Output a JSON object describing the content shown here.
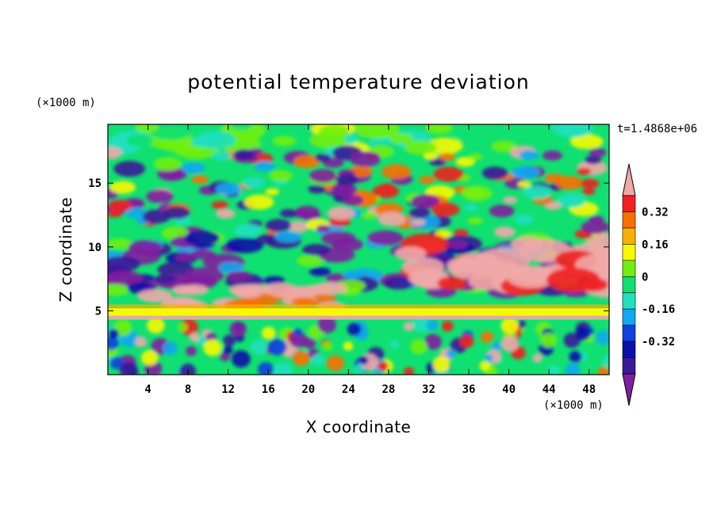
{
  "chart_data": {
    "type": "heatmap",
    "title": "potential temperature deviation",
    "time_label": "t=1.4868e+06",
    "xlabel": "X coordinate",
    "ylabel": "Z coordinate",
    "x_unit": "(×1000 m)",
    "y_unit": "(×1000 m)",
    "xlim": [
      0,
      50
    ],
    "ylim": [
      0,
      19.6
    ],
    "x_ticks": [
      4,
      8,
      12,
      16,
      20,
      24,
      28,
      32,
      36,
      40,
      44,
      48
    ],
    "y_ticks": [
      5,
      10,
      15
    ],
    "colorbar": {
      "levels": [
        -0.48,
        -0.4,
        -0.32,
        -0.24,
        -0.16,
        -0.08,
        0,
        0.08,
        0.16,
        0.24,
        0.32,
        0.4
      ],
      "labels": [
        "-0.32",
        "-0.16",
        "0",
        "0.16",
        "0.32"
      ],
      "label_values": [
        -0.32,
        -0.16,
        0,
        0.16,
        0.32
      ],
      "colors": [
        "#7f1fa0",
        "#3a1a98",
        "#0c10a8",
        "#1040e0",
        "#10a8f0",
        "#20e0c0",
        "#10e070",
        "#70f010",
        "#f8f800",
        "#f8b000",
        "#f87000",
        "#f02020",
        "#f0a8a8"
      ],
      "extend": "both"
    },
    "bands": [
      {
        "z": [
          19.6,
          17.5
        ],
        "note": "mostly near-zero (green / yellow-green)"
      },
      {
        "z": [
          17.5,
          11
        ],
        "note": "alternating positive and negative blobs"
      },
      {
        "z": [
          11,
          6
        ],
        "note": "broad negative band with strong positive region at x 30-50"
      },
      {
        "z": [
          6,
          4
        ],
        "note": "strong positive layer near z 4-5 (yellow / pink)"
      },
      {
        "z": [
          4,
          0
        ],
        "note": "oscillating vertical structures"
      }
    ]
  }
}
